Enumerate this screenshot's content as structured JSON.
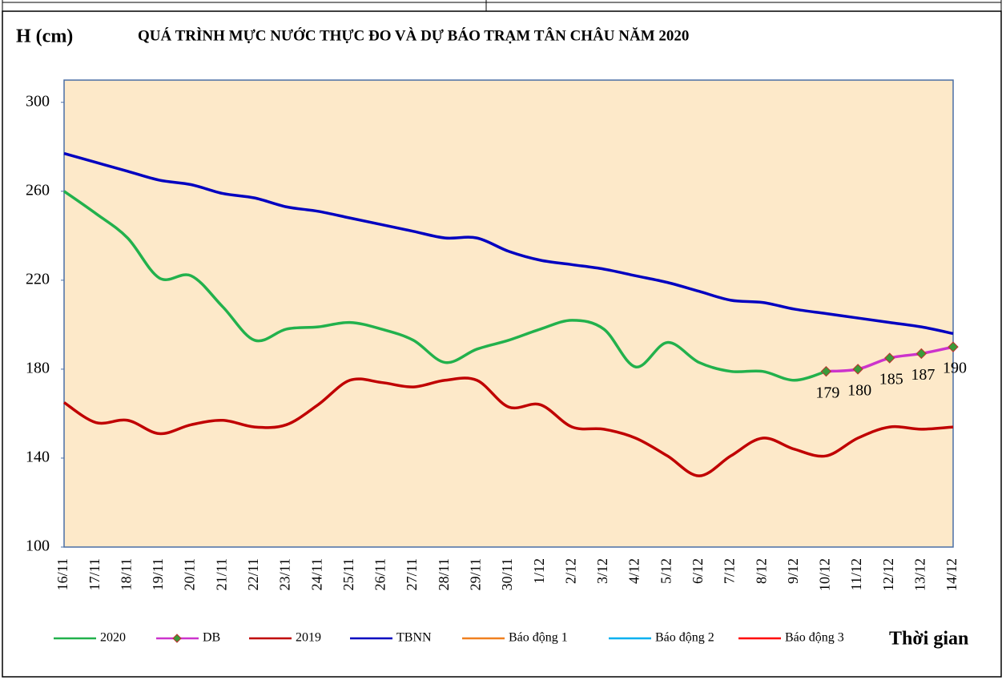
{
  "chart_data": {
    "type": "line",
    "title": "QUÁ TRÌNH MỰC NƯỚC THỰC ĐO VÀ DỰ BÁO TRẠM TÂN CHÂU NĂM 2020",
    "y_label": "H (cm)",
    "x_label": "Thời gian",
    "categories": [
      "16/11",
      "17/11",
      "18/11",
      "19/11",
      "20/11",
      "21/11",
      "22/11",
      "23/11",
      "24/11",
      "25/11",
      "26/11",
      "27/11",
      "28/11",
      "29/11",
      "30/11",
      "1/12",
      "2/12",
      "3/12",
      "4/12",
      "5/12",
      "6/12",
      "7/12",
      "8/12",
      "9/12",
      "10/12",
      "11/12",
      "12/12",
      "13/12",
      "14/12"
    ],
    "ylim": [
      100,
      310
    ],
    "yticks": [
      100,
      140,
      180,
      220,
      260,
      300
    ],
    "grid": false,
    "legend": "bottom",
    "series": [
      {
        "name": "2020",
        "color": "#22b14c",
        "values": [
          260,
          250,
          239,
          221,
          222,
          208,
          193,
          198,
          199,
          201,
          198,
          193,
          183,
          189,
          193,
          198,
          202,
          198,
          181,
          192,
          183,
          179,
          179,
          175,
          179,
          null,
          null,
          null,
          null
        ]
      },
      {
        "name": "DB",
        "color": "#cc33cc",
        "marker_color": "#3a9a3a",
        "values": [
          null,
          null,
          null,
          null,
          null,
          null,
          null,
          null,
          null,
          null,
          null,
          null,
          null,
          null,
          null,
          null,
          null,
          null,
          null,
          null,
          null,
          null,
          null,
          null,
          179,
          180,
          185,
          187,
          190
        ],
        "labels": true
      },
      {
        "name": "2019",
        "color": "#c00000",
        "values": [
          165,
          156,
          157,
          151,
          155,
          157,
          154,
          155,
          164,
          175,
          174,
          172,
          175,
          175,
          163,
          164,
          154,
          153,
          149,
          141,
          132,
          141,
          149,
          144,
          141,
          149,
          154,
          153,
          154
        ]
      },
      {
        "name": "TBNN",
        "color": "#0000c0",
        "values": [
          277,
          273,
          269,
          265,
          263,
          259,
          257,
          253,
          251,
          248,
          245,
          242,
          239,
          239,
          233,
          229,
          227,
          225,
          222,
          219,
          215,
          211,
          210,
          207,
          205,
          203,
          201,
          199,
          196
        ]
      },
      {
        "name": "Báo động 1",
        "color": "#f08020"
      },
      {
        "name": "Báo động 2",
        "color": "#00b0f0"
      },
      {
        "name": "Báo động 3",
        "color": "#ff0000"
      }
    ]
  }
}
